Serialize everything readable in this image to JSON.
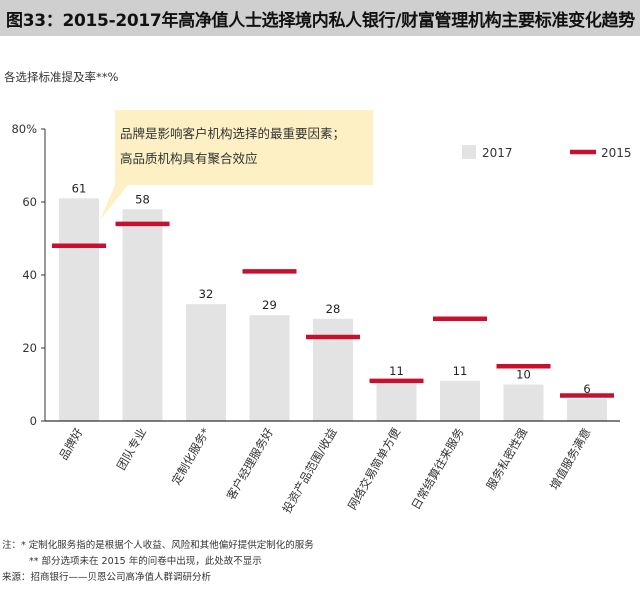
{
  "title": "图33：2015-2017年高净值人士选择境内私人银行/财富管理机构主要标准变化趋势",
  "chart_data": {
    "type": "bar",
    "subtitle": "各选择标准提及率**%",
    "categories": [
      "品牌好",
      "团队专业",
      "定制化服务*",
      "客户经理服务好",
      "投资产品范围/收益",
      "网络交易简单方便",
      "日常结算往来服务",
      "服务私密性强",
      "增值服务满意"
    ],
    "series": [
      {
        "name": "2017",
        "type": "bar",
        "color": "#e3e3e3",
        "values": [
          61,
          58,
          32,
          29,
          28,
          11,
          11,
          10,
          6
        ]
      },
      {
        "name": "2015",
        "type": "marker",
        "color": "#c8102e",
        "values": [
          48,
          54,
          null,
          41,
          23,
          11,
          28,
          15,
          7
        ]
      }
    ],
    "data_labels": [
      "61",
      "58",
      "32",
      "29",
      "28",
      "11",
      "11",
      "10",
      "6"
    ],
    "y_ticks": [
      "0",
      "20",
      "40",
      "60",
      "80%"
    ],
    "ylim": [
      0,
      80
    ],
    "annotation": [
      "品牌是影响客户机构选择的最重要因素；",
      "高品质机构具有聚合效应"
    ]
  },
  "legend": {
    "bar_label": "2017",
    "line_label": "2015"
  },
  "notes": [
    "注：* 定制化服务指的是根据个人收益、风险和其他偏好提供定制化的服务",
    "** 部分选项未在 2015 年的问卷中出现，此处故不显示",
    "来源：招商银行——贝恩公司高净值人群调研分析"
  ]
}
